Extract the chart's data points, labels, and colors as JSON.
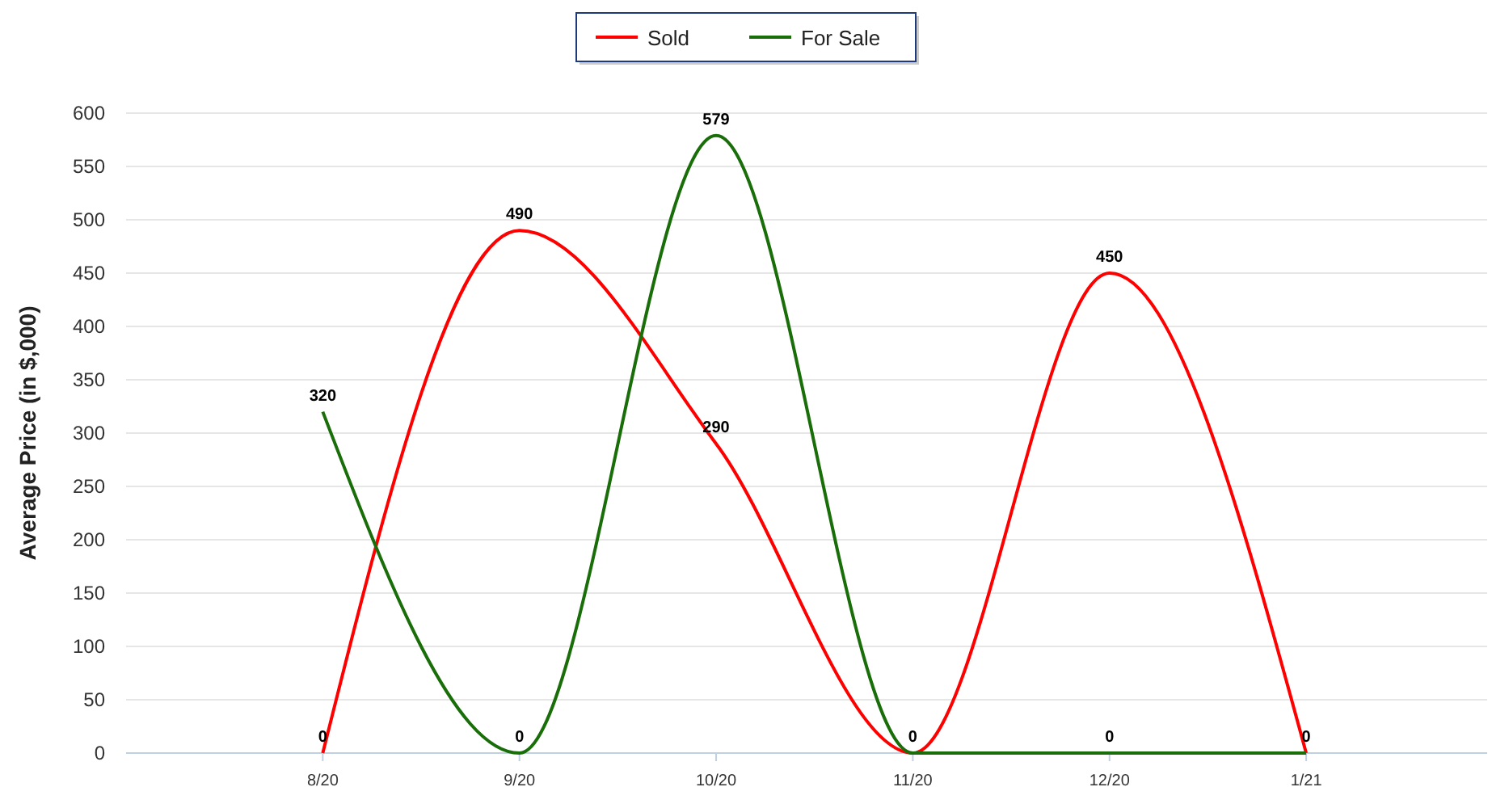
{
  "chart_data": {
    "type": "line",
    "ylabel": "Average Price (in $,000)",
    "categories": [
      "8/20",
      "9/20",
      "10/20",
      "11/20",
      "12/20",
      "1/21"
    ],
    "series": [
      {
        "name": "Sold",
        "color": "#ff0000",
        "values": [
          0,
          490,
          290,
          0,
          450,
          0
        ],
        "value_labels": [
          "0",
          "490",
          "290",
          "0",
          "450",
          "0"
        ]
      },
      {
        "name": "For Sale",
        "color": "#1a6e0a",
        "values": [
          320,
          0,
          579,
          0,
          0,
          0
        ],
        "value_labels": [
          "320",
          "0",
          "579",
          null,
          "0",
          null
        ]
      }
    ],
    "ylim": [
      0,
      600
    ],
    "yticks": [
      0,
      50,
      100,
      150,
      200,
      250,
      300,
      350,
      400,
      450,
      500,
      550,
      600
    ],
    "grid": "y",
    "legend": "top",
    "marker": "none",
    "line_style": "solid"
  }
}
